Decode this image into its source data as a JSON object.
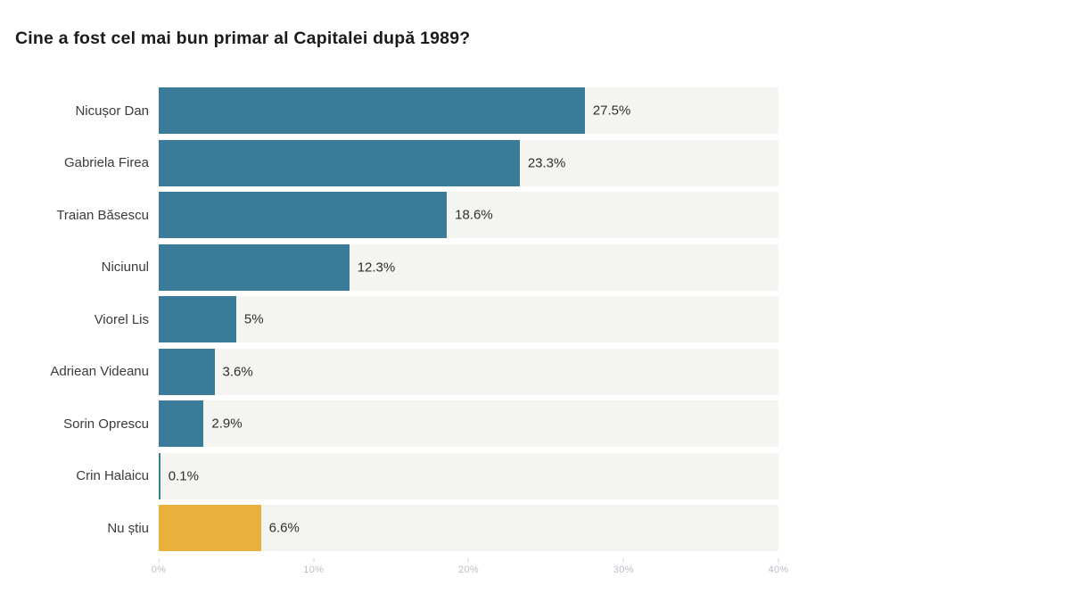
{
  "title": "Cine a fost cel mai bun primar al Capitalei după 1989?",
  "chart_data": {
    "type": "bar",
    "orientation": "horizontal",
    "title": "Cine a fost cel mai bun primar al Capitalei după 1989?",
    "categories": [
      "Nicușor Dan",
      "Gabriela Firea",
      "Traian Băsescu",
      "Niciunul",
      "Viorel Lis",
      "Adriean Videanu",
      "Sorin Oprescu",
      "Crin Halaicu",
      "Nu știu"
    ],
    "values": [
      27.5,
      23.3,
      18.6,
      12.3,
      5,
      3.6,
      2.9,
      0.1,
      6.6
    ],
    "value_labels": [
      "27.5%",
      "23.3%",
      "18.6%",
      "12.3%",
      "5%",
      "3.6%",
      "2.9%",
      "0.1%",
      "6.6%"
    ],
    "bar_colors": [
      "#3a7b9a",
      "#3a7b9a",
      "#3a7b9a",
      "#3a7b9a",
      "#3a7b9a",
      "#3a7b9a",
      "#3a7b9a",
      "#3a7b9a",
      "#eab03c"
    ],
    "xlabel": "",
    "ylabel": "",
    "xlim": [
      0,
      40
    ],
    "x_tick_values": [
      0,
      10,
      20,
      30,
      40
    ],
    "x_tick_labels": [
      "0%",
      "10%",
      "20%",
      "30%",
      "40%"
    ],
    "grid": false,
    "legend": "none",
    "colors": {
      "bar_default": "#3a7b9a",
      "bar_highlight": "#eab03c",
      "track": "#f4f4f1",
      "axis_text": "#b9bec6",
      "category_text": "#3b3b3b",
      "value_text": "#2e2e2e",
      "title_text": "#1b1b1b"
    }
  }
}
